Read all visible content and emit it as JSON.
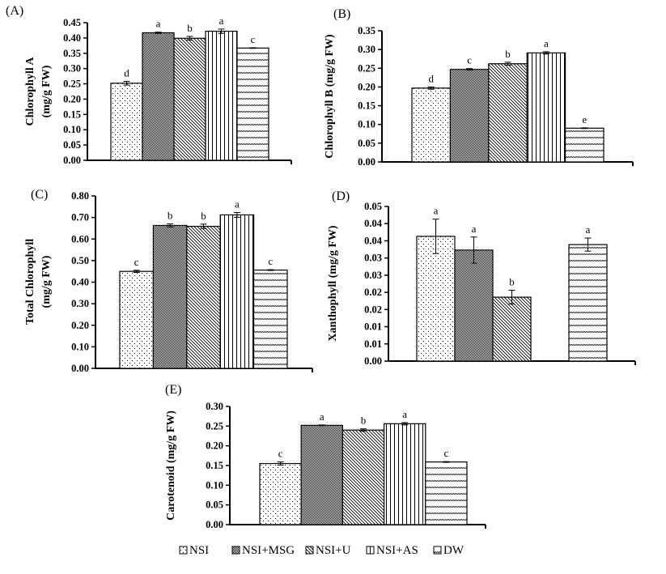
{
  "legend": {
    "entries": [
      {
        "name": "NSI",
        "pattern": "dots"
      },
      {
        "name": "NSI+MSG",
        "pattern": "crosshatch"
      },
      {
        "name": "NSI+U",
        "pattern": "diag"
      },
      {
        "name": "NSI+AS",
        "pattern": "vlines"
      },
      {
        "name": "DW",
        "pattern": "dashdiag"
      }
    ]
  },
  "colors": {
    "ink": "#000000",
    "background": "#ffffff"
  },
  "chart_data": [
    {
      "type": "bar",
      "panel": "(A)",
      "ylabel": [
        "Chlorophyll A",
        "(mg/g FW)"
      ],
      "categories": [
        "NSI",
        "NSI+MSG",
        "NSI+U",
        "NSI+AS",
        "DW"
      ],
      "values": [
        0.252,
        0.417,
        0.399,
        0.422,
        0.367
      ],
      "errors": [
        0.006,
        0.002,
        0.006,
        0.007,
        0.001
      ],
      "significance": [
        "d",
        "a",
        "b",
        "a",
        "c"
      ],
      "ylim": [
        0,
        0.45
      ],
      "yticks": [
        "0.00",
        "0.05",
        "0.10",
        "0.15",
        "0.20",
        "0.25",
        "0.30",
        "0.35",
        "0.40",
        "0.45"
      ]
    },
    {
      "type": "bar",
      "panel": "(B)",
      "ylabel": [
        "Chlorophyll B (mg/g FW)"
      ],
      "categories": [
        "NSI",
        "NSI+MSG",
        "NSI+U",
        "NSI+AS",
        "DW"
      ],
      "values": [
        0.197,
        0.247,
        0.262,
        0.291,
        0.09
      ],
      "errors": [
        0.003,
        0.002,
        0.004,
        0.003,
        0.001
      ],
      "significance": [
        "d",
        "c",
        "b",
        "a",
        "e"
      ],
      "ylim": [
        0,
        0.35
      ],
      "yticks": [
        "0.00",
        "0.05",
        "0.10",
        "0.15",
        "0.20",
        "0.25",
        "0.30",
        "0.35"
      ]
    },
    {
      "type": "bar",
      "panel": "(C)",
      "ylabel": [
        "Total Chlorophyll",
        "(mg/g FW)"
      ],
      "categories": [
        "NSI",
        "NSI+MSG",
        "NSI+U",
        "NSI+AS",
        "DW"
      ],
      "values": [
        0.45,
        0.663,
        0.659,
        0.712,
        0.456
      ],
      "errors": [
        0.005,
        0.007,
        0.01,
        0.011,
        0.002
      ],
      "significance": [
        "c",
        "b",
        "b",
        "a",
        "c"
      ],
      "ylim": [
        0,
        0.8
      ],
      "yticks": [
        "0.00",
        "0.10",
        "0.20",
        "0.30",
        "0.40",
        "0.50",
        "0.60",
        "0.70",
        "0.80"
      ]
    },
    {
      "type": "bar",
      "panel": "(D)",
      "ylabel": [
        "Xanthophyll (mg/g FW)"
      ],
      "categories": [
        "NSI",
        "NSI+MSG",
        "NSI+U",
        "NSI+AS",
        "DW"
      ],
      "values": [
        0.0363,
        0.0323,
        0.0186,
        0,
        0.0339
      ],
      "errors": [
        0.005,
        0.0038,
        0.002,
        0,
        0.0019
      ],
      "significance": [
        "a",
        "a",
        "b",
        "",
        "a"
      ],
      "ylim": [
        0,
        0.045
      ],
      "yticks": [
        "0.00",
        "0.01",
        "0.01",
        "0.02",
        "0.02",
        "0.03",
        "0.03",
        "0.04",
        "0.04",
        "0.05"
      ]
    },
    {
      "type": "bar",
      "panel": "(E)",
      "ylabel": [
        "Carotenoid (mg/g FW)"
      ],
      "categories": [
        "NSI",
        "NSI+MSG",
        "NSI+U",
        "NSI+AS",
        "DW"
      ],
      "values": [
        0.155,
        0.252,
        0.24,
        0.256,
        0.159
      ],
      "errors": [
        0.004,
        0.001,
        0.003,
        0.003,
        0.001
      ],
      "significance": [
        "c",
        "a",
        "b",
        "a",
        "c"
      ],
      "ylim": [
        0,
        0.3
      ],
      "yticks": [
        "0.00",
        "0.05",
        "0.10",
        "0.15",
        "0.20",
        "0.25",
        "0.30"
      ]
    }
  ]
}
